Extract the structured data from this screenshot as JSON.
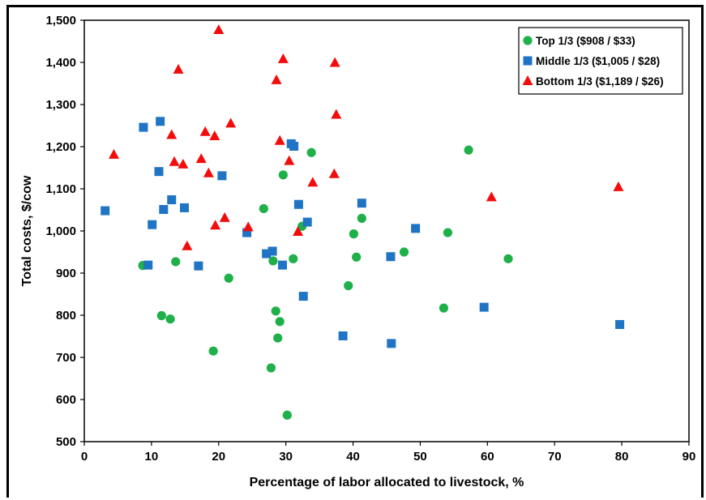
{
  "chart_data": {
    "type": "scatter",
    "title": "",
    "xlabel": "Percentage of labor allocated to livestock, %",
    "ylabel": "Total costs, $/cow",
    "xlim": [
      0,
      90
    ],
    "ylim": [
      500,
      1500
    ],
    "x_ticks": [
      0,
      10,
      20,
      30,
      40,
      50,
      60,
      70,
      80,
      90
    ],
    "y_ticks": [
      500,
      600,
      700,
      800,
      900,
      1000,
      1100,
      1200,
      1300,
      1400,
      1500
    ],
    "y_tick_labels": [
      "500",
      "600",
      "700",
      "800",
      "900",
      "1,000",
      "1,100",
      "1,200",
      "1,300",
      "1,400",
      "1,500"
    ],
    "grid": false,
    "legend_position": "top-right",
    "series": [
      {
        "name": "Top 1/3 ($908 / $33)",
        "color": "#1fb04a",
        "marker": "circle",
        "points": [
          [
            8.7,
            918
          ],
          [
            11.5,
            799
          ],
          [
            12.8,
            791
          ],
          [
            13.6,
            927
          ],
          [
            19.2,
            715
          ],
          [
            21.5,
            888
          ],
          [
            26.7,
            1053
          ],
          [
            27.8,
            675
          ],
          [
            28.1,
            929
          ],
          [
            28.5,
            810
          ],
          [
            28.8,
            746
          ],
          [
            29.1,
            785
          ],
          [
            29.6,
            1133
          ],
          [
            30.2,
            563
          ],
          [
            31.1,
            934
          ],
          [
            32.4,
            1011
          ],
          [
            33.8,
            1186
          ],
          [
            39.3,
            870
          ],
          [
            40.1,
            993
          ],
          [
            40.5,
            938
          ],
          [
            41.3,
            1030
          ],
          [
            47.6,
            950
          ],
          [
            53.5,
            817
          ],
          [
            54.1,
            996
          ],
          [
            57.2,
            1192
          ],
          [
            63.1,
            934
          ]
        ]
      },
      {
        "name": "Middle 1/3 ($1,005 / $28)",
        "color": "#1f74c4",
        "marker": "square",
        "points": [
          [
            3.1,
            1048
          ],
          [
            8.8,
            1246
          ],
          [
            9.5,
            919
          ],
          [
            10.1,
            1015
          ],
          [
            11.1,
            1141
          ],
          [
            11.3,
            1260
          ],
          [
            11.8,
            1051
          ],
          [
            13.0,
            1074
          ],
          [
            14.9,
            1055
          ],
          [
            17.0,
            917
          ],
          [
            20.5,
            1131
          ],
          [
            24.2,
            996
          ],
          [
            27.1,
            946
          ],
          [
            28.0,
            952
          ],
          [
            29.5,
            919
          ],
          [
            30.8,
            1207
          ],
          [
            31.2,
            1201
          ],
          [
            31.9,
            1063
          ],
          [
            32.6,
            845
          ],
          [
            33.2,
            1021
          ],
          [
            38.5,
            751
          ],
          [
            41.3,
            1066
          ],
          [
            45.6,
            939
          ],
          [
            45.7,
            733
          ],
          [
            49.3,
            1006
          ],
          [
            59.5,
            819
          ],
          [
            79.7,
            778
          ]
        ]
      },
      {
        "name": "Bottom 1/3 ($1,189 / $26)",
        "color": "#f20d0d",
        "marker": "triangle",
        "points": [
          [
            4.4,
            1181
          ],
          [
            13.0,
            1228
          ],
          [
            13.4,
            1164
          ],
          [
            14.0,
            1383
          ],
          [
            14.7,
            1158
          ],
          [
            15.3,
            964
          ],
          [
            17.4,
            1171
          ],
          [
            18.0,
            1235
          ],
          [
            18.5,
            1137
          ],
          [
            19.4,
            1225
          ],
          [
            19.5,
            1013
          ],
          [
            20.0,
            1477
          ],
          [
            20.9,
            1031
          ],
          [
            21.8,
            1255
          ],
          [
            24.4,
            1009
          ],
          [
            28.6,
            1358
          ],
          [
            29.1,
            1214
          ],
          [
            29.6,
            1408
          ],
          [
            30.5,
            1166
          ],
          [
            31.8,
            998
          ],
          [
            34.0,
            1115
          ],
          [
            37.2,
            1135
          ],
          [
            37.3,
            1399
          ],
          [
            37.5,
            1276
          ],
          [
            60.6,
            1080
          ],
          [
            79.5,
            1104
          ]
        ]
      }
    ]
  }
}
